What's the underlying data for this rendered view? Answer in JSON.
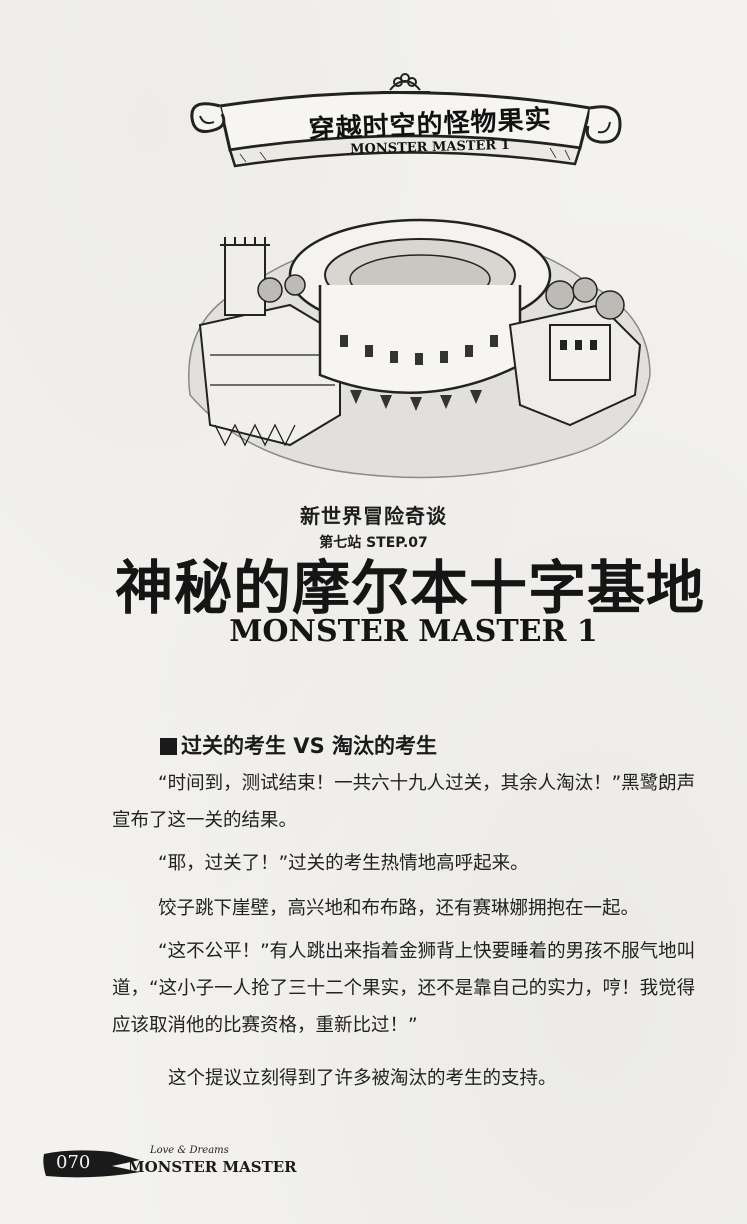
{
  "banner": {
    "title": "穿越时空的怪物果实",
    "subtitle": "MONSTER MASTER 1"
  },
  "header": {
    "series": "新世界冒险奇谈",
    "station": "第七站 STEP.07",
    "chapter_title": "神秘的摩尔本十字基地",
    "chapter_subtitle": "MONSTER MASTER 1"
  },
  "section": {
    "heading": "过关的考生 VS 淘汰的考生"
  },
  "paragraphs": [
    "“时间到，测试结束！一共六十九人过关，其余人淘汰！”黑鹭朗声宣布了这一关的结果。",
    "“耶，过关了！”过关的考生热情地高呼起来。",
    "饺子跳下崖壁，高兴地和布布路，还有赛琳娜拥抱在一起。",
    "“这不公平！”有人跳出来指着金狮背上快要睡着的男孩不服气地叫道，“这小子一人抢了三十二个果实，还不是靠自己的实力，哼！我觉得应该取消他的比赛资格，重新比过！”",
    "这个提议立刻得到了许多被淘汰的考生的支持。"
  ],
  "footer": {
    "page_number": "070",
    "small_text": "Love & Dreams",
    "brand": "MONSTER MASTER"
  }
}
